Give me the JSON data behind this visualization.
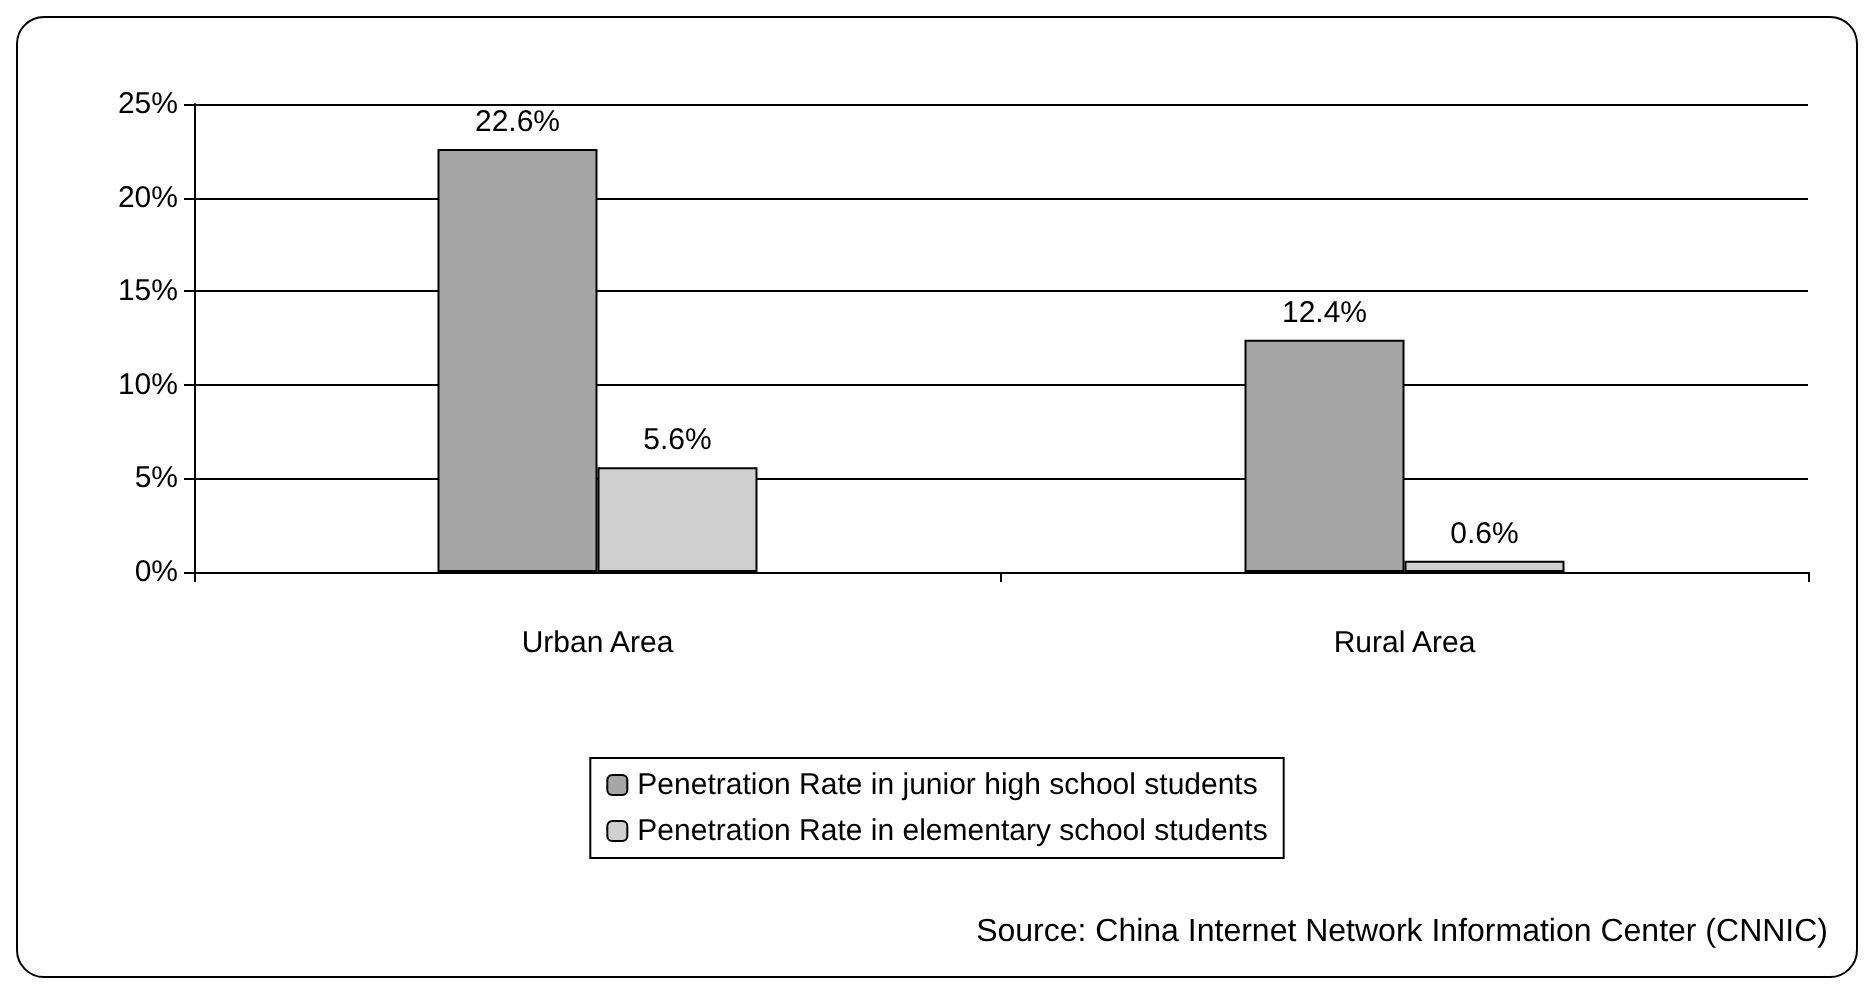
{
  "chart_data": {
    "type": "bar",
    "categories": [
      "Urban Area",
      "Rural Area"
    ],
    "series": [
      {
        "name": "Penetration Rate in junior high school students",
        "color": "#a6a6a6",
        "values": [
          22.6,
          12.4
        ],
        "value_labels": [
          "22.6%",
          "12.4%"
        ]
      },
      {
        "name": "Penetration Rate in elementary school students",
        "color": "#cfcfcf",
        "values": [
          5.6,
          0.6
        ],
        "value_labels": [
          "5.6%",
          "0.6%"
        ]
      }
    ],
    "ylim": [
      0,
      25
    ],
    "yticks": [
      {
        "value": 0,
        "label": "0%"
      },
      {
        "value": 5,
        "label": "5%"
      },
      {
        "value": 10,
        "label": "10%"
      },
      {
        "value": 15,
        "label": "15%"
      },
      {
        "value": 20,
        "label": "20%"
      },
      {
        "value": 25,
        "label": "25%"
      }
    ],
    "grid": "y",
    "legend": "bottom",
    "annotations": [
      "Source: China Internet Network Information Center (CNNIC)"
    ]
  }
}
